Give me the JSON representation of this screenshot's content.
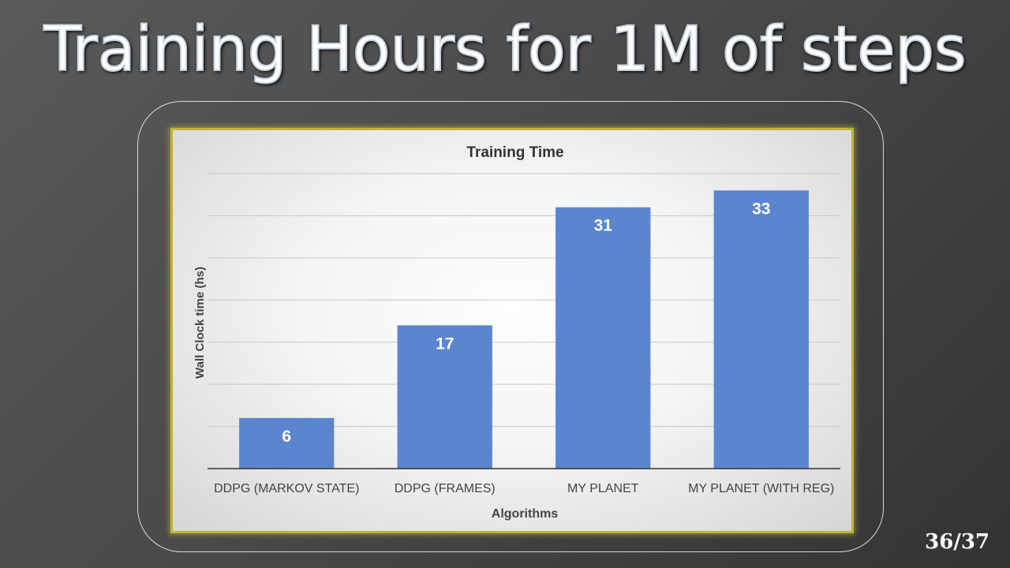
{
  "slide": {
    "title": "Training Hours for 1M of steps",
    "page_number": "36/37"
  },
  "colors": {
    "bar": "#5b86cf",
    "panel_border": "#c0b23a",
    "gridline": "#c8c8c8"
  },
  "chart_data": {
    "type": "bar",
    "title": "Training Time",
    "xlabel": "Algorithms",
    "ylabel": "Wall Clock time (hs)",
    "categories": [
      "DDPG (MARKOV STATE)",
      "DDPG (FRAMES)",
      "MY PLANET",
      "MY PLANET (WITH REG)"
    ],
    "values": [
      6,
      17,
      31,
      33
    ],
    "data_labels": [
      "6",
      "17",
      "31",
      "33"
    ],
    "ylim": [
      0,
      35
    ],
    "grid": true,
    "legend": "none"
  }
}
